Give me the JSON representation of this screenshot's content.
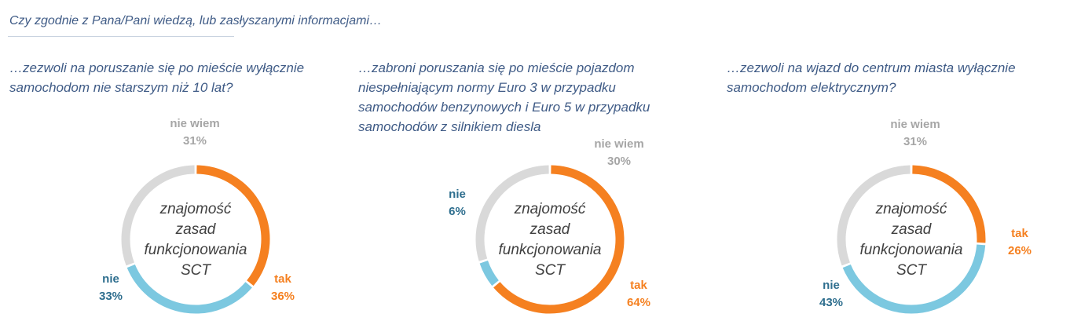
{
  "header": {
    "text": "Czy zgodnie z Pana/Pani wiedzą, lub zasłyszanymi informacjami…"
  },
  "colors": {
    "tak": "#f58020",
    "nie": "#7cc8e0",
    "nie_wiem": "#d9d9d9",
    "tak_label": "#f58020",
    "nie_label": "#2e6e8e",
    "nie_wiem_label": "#a6a6a6"
  },
  "questions": [
    {
      "lines": [
        "…zezwoli na poruszanie się po mieście wyłącznie",
        "samochodom nie starszym niż 10 lat?"
      ]
    },
    {
      "lines": [
        "…zabroni poruszania się po mieście pojazdom",
        "niespełniającym normy Euro 3 w przypadku",
        "samochodów benzynowych  i Euro 5 w przypadku",
        "samochodów z silnikiem diesla"
      ]
    },
    {
      "lines": [
        "…zezwoli na wjazd do centrum miasta wyłącznie",
        "samochodom elektrycznym?"
      ]
    }
  ],
  "chart_data": [
    {
      "type": "pie",
      "variant": "donut",
      "center_text": [
        "znajomość",
        "zasad",
        "funkcjonowania",
        "SCT"
      ],
      "slices": [
        {
          "key": "tak",
          "label": "tak",
          "value": 36,
          "display": "36%"
        },
        {
          "key": "nie",
          "label": "nie",
          "value": 33,
          "display": "33%"
        },
        {
          "key": "nie_wiem",
          "label": "nie wiem",
          "value": 31,
          "display": "31%"
        }
      ]
    },
    {
      "type": "pie",
      "variant": "donut",
      "center_text": [
        "znajomość",
        "zasad",
        "funkcjonowania",
        "SCT"
      ],
      "slices": [
        {
          "key": "tak",
          "label": "tak",
          "value": 64,
          "display": "64%"
        },
        {
          "key": "nie",
          "label": "nie",
          "value": 6,
          "display": "6%"
        },
        {
          "key": "nie_wiem",
          "label": "nie wiem",
          "value": 30,
          "display": "30%"
        }
      ]
    },
    {
      "type": "pie",
      "variant": "donut",
      "center_text": [
        "znajomość",
        "zasad",
        "funkcjonowania",
        "SCT"
      ],
      "slices": [
        {
          "key": "tak",
          "label": "tak",
          "value": 26,
          "display": "26%"
        },
        {
          "key": "nie",
          "label": "nie",
          "value": 43,
          "display": "43%"
        },
        {
          "key": "nie_wiem",
          "label": "nie wiem",
          "value": 31,
          "display": "31%"
        }
      ]
    }
  ]
}
